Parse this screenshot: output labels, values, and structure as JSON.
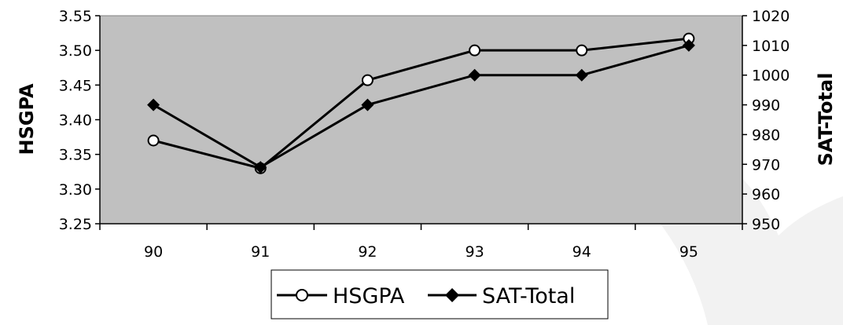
{
  "chart_data": {
    "type": "line",
    "categories": [
      "90",
      "91",
      "92",
      "93",
      "94",
      "95"
    ],
    "x_tick_labels": [
      "90",
      "91",
      "92",
      "93",
      "94",
      "95"
    ],
    "left_axis": {
      "title": "HSGPA",
      "ylim": [
        3.25,
        3.55
      ],
      "tick_labels": [
        "3.25",
        "3.30",
        "3.35",
        "3.40",
        "3.45",
        "3.50",
        "3.55"
      ]
    },
    "right_axis": {
      "title": "SAT-Total",
      "ylim": [
        950,
        1020
      ],
      "tick_labels": [
        "950",
        "960",
        "970",
        "980",
        "990",
        "1000",
        "1010",
        "1020"
      ]
    },
    "series": [
      {
        "name": "HSGPA",
        "axis": "left",
        "marker": "circle-open",
        "values": [
          3.37,
          3.33,
          3.457,
          3.5,
          3.5,
          3.517
        ]
      },
      {
        "name": "SAT-Total",
        "axis": "right",
        "marker": "diamond-filled",
        "values": [
          990,
          969,
          990,
          1000,
          1000,
          1010
        ]
      }
    ],
    "legend": {
      "position": "bottom",
      "entries": [
        "HSGPA",
        "SAT-Total"
      ]
    },
    "grid": false,
    "plot_background": "#c0c0c0",
    "line_color": "#000000"
  }
}
